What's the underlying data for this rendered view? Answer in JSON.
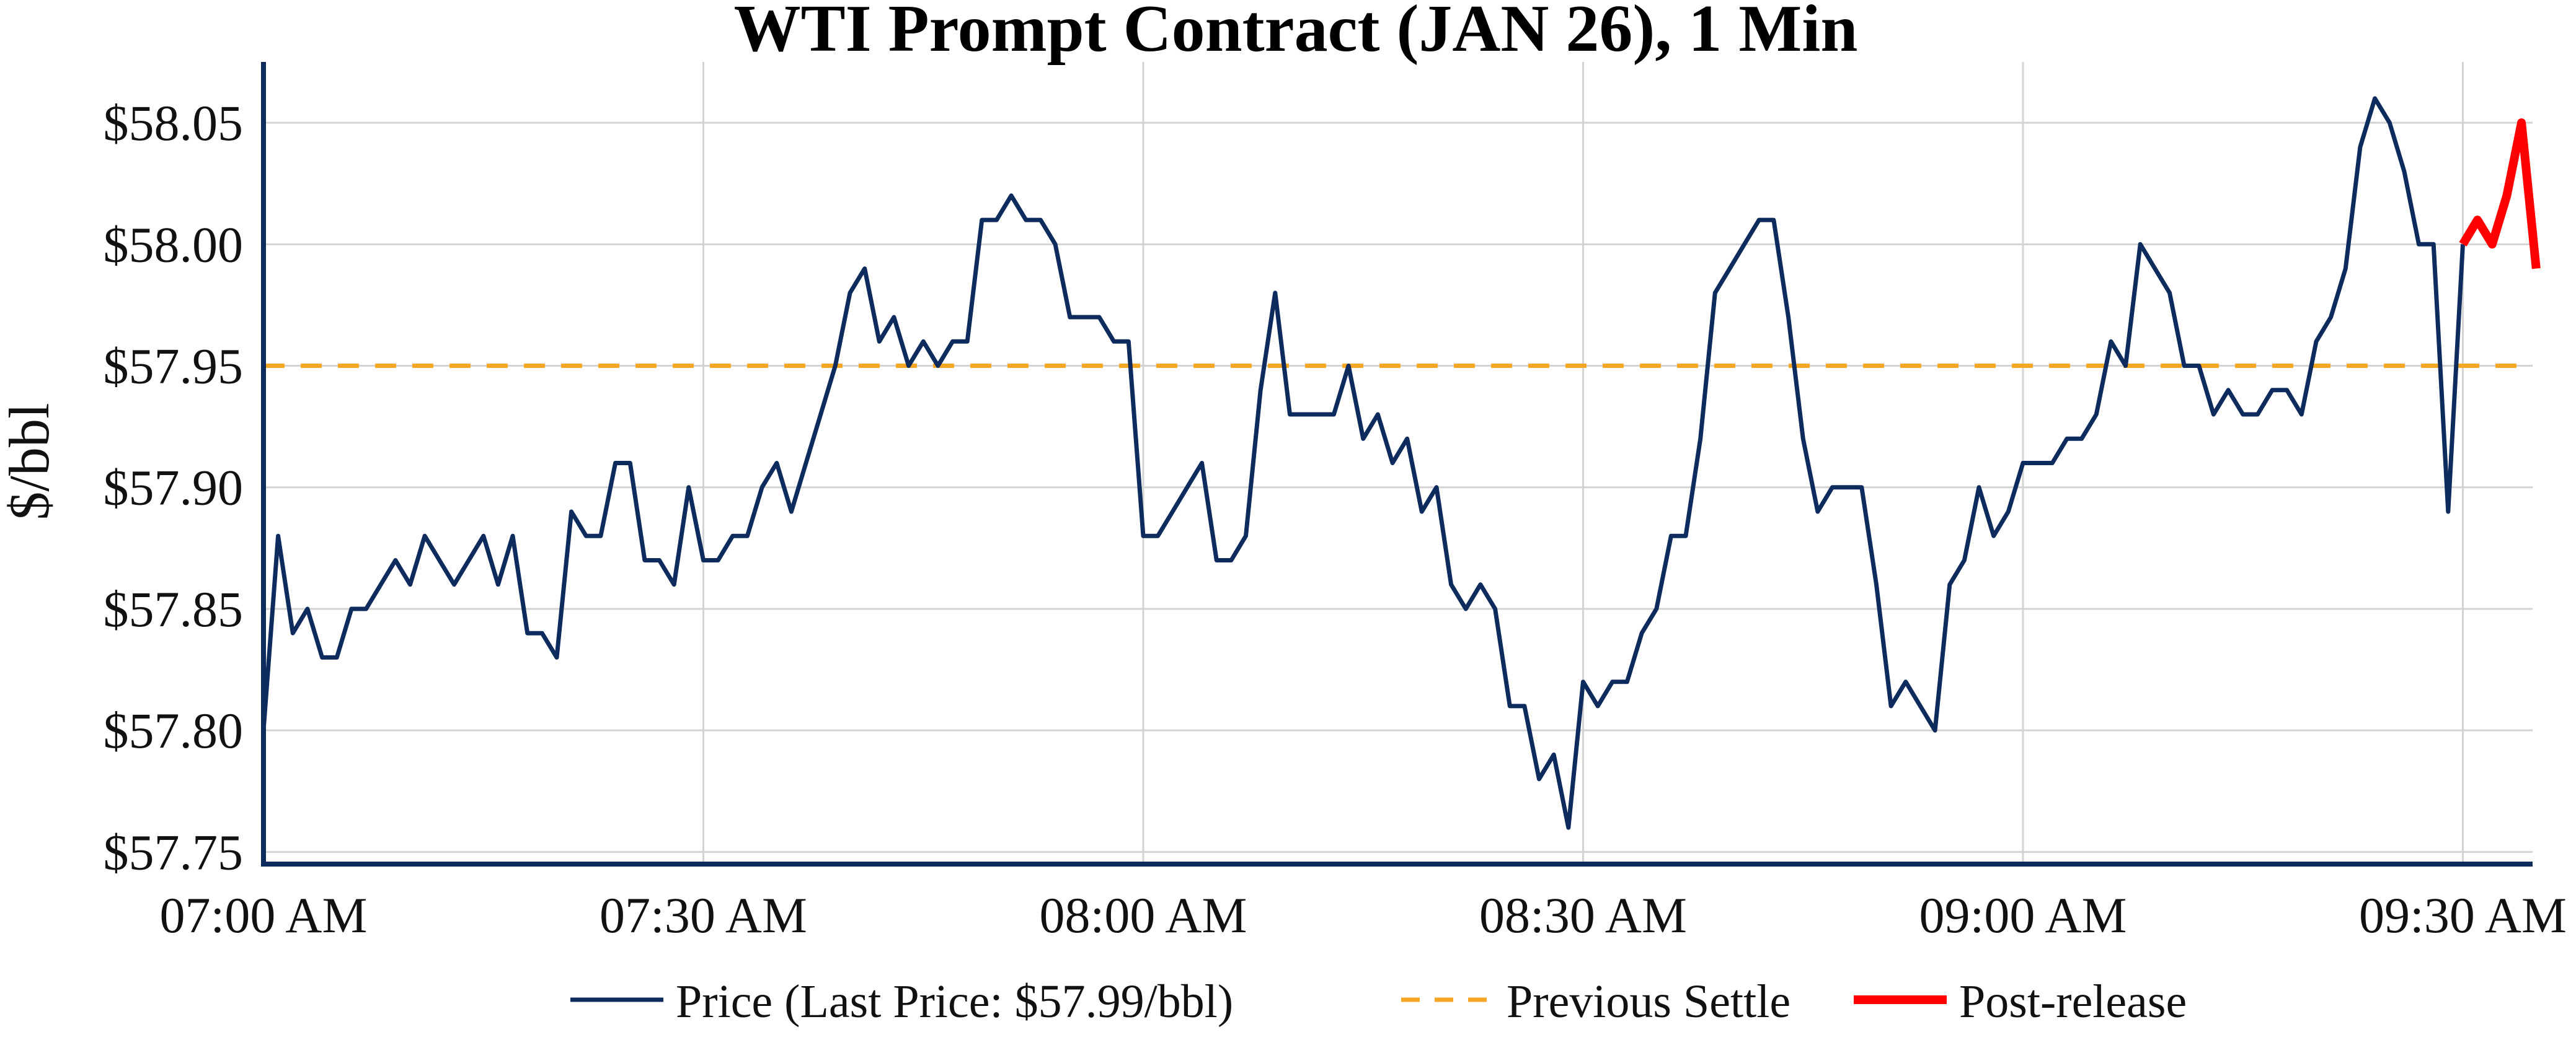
{
  "chart_data": {
    "type": "line",
    "title": "WTI Prompt Contract (JAN 26), 1 Min",
    "xlabel": "",
    "ylabel": "$/bbl",
    "ylim": [
      57.745,
      58.075
    ],
    "xlim_minutes": [
      0,
      155
    ],
    "grid": true,
    "yticks": [
      {
        "value": 57.75,
        "label": "$57.75"
      },
      {
        "value": 57.8,
        "label": "$57.80"
      },
      {
        "value": 57.85,
        "label": "$57.85"
      },
      {
        "value": 57.9,
        "label": "$57.90"
      },
      {
        "value": 57.95,
        "label": "$57.95"
      },
      {
        "value": 58.0,
        "label": "$58.00"
      },
      {
        "value": 58.05,
        "label": "$58.05"
      }
    ],
    "xticks": [
      {
        "minute": 0,
        "label": "07:00 AM"
      },
      {
        "minute": 30,
        "label": "07:30 AM"
      },
      {
        "minute": 60,
        "label": "08:00 AM"
      },
      {
        "minute": 90,
        "label": "08:30 AM"
      },
      {
        "minute": 120,
        "label": "09:00 AM"
      },
      {
        "minute": 150,
        "label": "09:30 AM"
      }
    ],
    "legend_position": "bottom-center",
    "series": [
      {
        "name": "Price (Last Price: $57.99/bbl)",
        "color": "#0d2b5c",
        "style": "solid",
        "x_minutes": [
          0,
          1,
          2,
          3,
          4,
          5,
          6,
          7,
          8,
          9,
          10,
          11,
          12,
          13,
          14,
          15,
          16,
          17,
          18,
          19,
          20,
          21,
          22,
          23,
          24,
          25,
          26,
          27,
          28,
          29,
          30,
          31,
          32,
          33,
          34,
          35,
          36,
          37,
          38,
          39,
          40,
          41,
          42,
          43,
          44,
          45,
          46,
          47,
          48,
          49,
          50,
          51,
          52,
          53,
          54,
          55,
          56,
          57,
          58,
          59,
          60,
          61,
          62,
          63,
          64,
          65,
          66,
          67,
          68,
          69,
          70,
          71,
          72,
          73,
          74,
          75,
          76,
          77,
          78,
          79,
          80,
          81,
          82,
          83,
          84,
          85,
          86,
          87,
          88,
          89,
          90,
          91,
          92,
          93,
          94,
          95,
          96,
          97,
          98,
          99,
          100,
          101,
          102,
          103,
          104,
          105,
          106,
          107,
          108,
          109,
          110,
          111,
          112,
          113,
          114,
          115,
          116,
          117,
          118,
          119,
          120,
          121,
          122,
          123,
          124,
          125,
          126,
          127,
          128,
          129,
          130,
          131,
          132,
          133,
          134,
          135,
          136,
          137,
          138,
          139,
          140,
          141,
          142,
          143,
          144,
          145,
          146,
          147,
          148,
          149,
          150
        ],
        "values": [
          57.8,
          57.88,
          57.84,
          57.85,
          57.83,
          57.83,
          57.85,
          57.85,
          57.86,
          57.87,
          57.86,
          57.88,
          57.87,
          57.86,
          57.87,
          57.88,
          57.86,
          57.88,
          57.84,
          57.84,
          57.83,
          57.89,
          57.88,
          57.88,
          57.91,
          57.91,
          57.87,
          57.87,
          57.86,
          57.9,
          57.87,
          57.87,
          57.88,
          57.88,
          57.9,
          57.91,
          57.89,
          57.91,
          57.93,
          57.95,
          57.98,
          57.99,
          57.96,
          57.97,
          57.95,
          57.96,
          57.95,
          57.96,
          57.96,
          58.01,
          58.01,
          58.02,
          58.01,
          58.01,
          58.0,
          57.97,
          57.97,
          57.97,
          57.96,
          57.96,
          57.88,
          57.88,
          57.89,
          57.9,
          57.91,
          57.87,
          57.87,
          57.88,
          57.94,
          57.98,
          57.93,
          57.93,
          57.93,
          57.93,
          57.95,
          57.92,
          57.93,
          57.91,
          57.92,
          57.89,
          57.9,
          57.86,
          57.85,
          57.86,
          57.85,
          57.81,
          57.81,
          57.78,
          57.79,
          57.76,
          57.82,
          57.81,
          57.82,
          57.82,
          57.84,
          57.85,
          57.88,
          57.88,
          57.92,
          57.98,
          57.99,
          58.0,
          58.01,
          58.01,
          57.97,
          57.92,
          57.89,
          57.9,
          57.9,
          57.9,
          57.86,
          57.81,
          57.82,
          57.81,
          57.8,
          57.86,
          57.87,
          57.9,
          57.88,
          57.89,
          57.91,
          57.91,
          57.91,
          57.92,
          57.92,
          57.93,
          57.96,
          57.95,
          58.0,
          57.99,
          57.98,
          57.95,
          57.95,
          57.93,
          57.94,
          57.93,
          57.93,
          57.94,
          57.94,
          57.93,
          57.96,
          57.97,
          57.99,
          58.04,
          58.06,
          58.05,
          58.03,
          58.0,
          58.0,
          57.89,
          58.0
        ]
      },
      {
        "name": "Previous Settle",
        "color": "#f5a623",
        "style": "dashed",
        "value": 57.95
      },
      {
        "name": "Post-release",
        "color": "#ff0000",
        "style": "solid-thick",
        "x_minutes": [
          150,
          151,
          152,
          153,
          154,
          155
        ],
        "values": [
          58.0,
          58.01,
          58.0,
          58.02,
          58.05,
          57.99
        ]
      }
    ]
  }
}
